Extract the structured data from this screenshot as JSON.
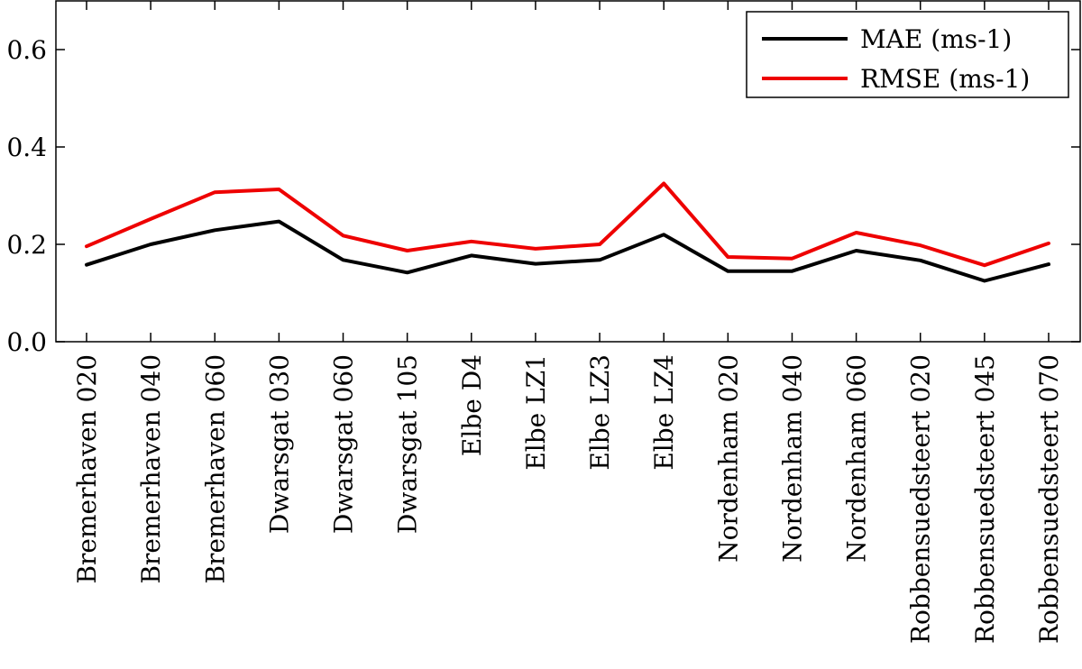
{
  "chart_data": {
    "type": "line",
    "categories": [
      "Bremerhaven 020",
      "Bremerhaven 040",
      "Bremerhaven 060",
      "Dwarsgat 030",
      "Dwarsgat 060",
      "Dwarsgat 105",
      "Elbe D4",
      "Elbe LZ1",
      "Elbe LZ3",
      "Elbe LZ4",
      "Nordenham 020",
      "Nordenham 040",
      "Nordenham 060",
      "Robbensuedsteert 020",
      "Robbensuedsteert 045",
      "Robbensuedsteert 070"
    ],
    "series": [
      {
        "name": "MAE (ms-1)",
        "color": "#000000",
        "values": [
          0.158,
          0.2,
          0.229,
          0.247,
          0.168,
          0.142,
          0.177,
          0.16,
          0.168,
          0.22,
          0.145,
          0.145,
          0.187,
          0.167,
          0.125,
          0.159
        ]
      },
      {
        "name": "RMSE (ms-1)",
        "color": "#ee0000",
        "values": [
          0.196,
          0.252,
          0.307,
          0.313,
          0.218,
          0.187,
          0.206,
          0.191,
          0.2,
          0.325,
          0.174,
          0.171,
          0.224,
          0.198,
          0.157,
          0.202
        ]
      }
    ],
    "yticks": [
      "0.0",
      "0.2",
      "0.4",
      "0.6"
    ],
    "ylim": [
      0,
      0.7
    ],
    "legend_position": "top-right",
    "grid": false
  }
}
